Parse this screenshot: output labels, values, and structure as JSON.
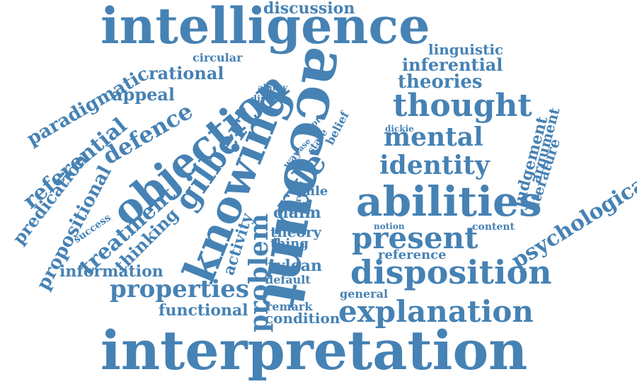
{
  "color": "#4682b4",
  "words": [
    {
      "text": "intelligence",
      "slug": "intelligence"
    },
    {
      "text": "interpretation",
      "slug": "interpretation"
    },
    {
      "text": "account",
      "slug": "account"
    },
    {
      "text": "knowing",
      "slug": "knowing"
    },
    {
      "text": "abilities",
      "slug": "abilities"
    },
    {
      "text": "objection",
      "slug": "objection"
    },
    {
      "text": "disposition",
      "slug": "disposition"
    },
    {
      "text": "thought",
      "slug": "thought"
    },
    {
      "text": "explanation",
      "slug": "explanation"
    },
    {
      "text": "gilbert",
      "slug": "gilbert"
    },
    {
      "text": "ryle",
      "slug": "ryle"
    },
    {
      "text": "present",
      "slug": "present"
    },
    {
      "text": "mental",
      "slug": "mental"
    },
    {
      "text": "identity",
      "slug": "identity"
    },
    {
      "text": "problem",
      "slug": "problem"
    },
    {
      "text": "properties",
      "slug": "properties"
    },
    {
      "text": "defence",
      "slug": "defence"
    },
    {
      "text": "treatment",
      "slug": "treatment"
    },
    {
      "text": "referential",
      "slug": "referential"
    },
    {
      "text": "psychological",
      "slug": "psychological"
    },
    {
      "text": "paradigmatic",
      "slug": "paradigmatic"
    },
    {
      "text": "propositional",
      "slug": "propositional"
    },
    {
      "text": "predication",
      "slug": "predication"
    },
    {
      "text": "theories",
      "slug": "theories"
    },
    {
      "text": "inferential",
      "slug": "inferential"
    },
    {
      "text": "linguistic",
      "slug": "linguistic"
    },
    {
      "text": "rational",
      "slug": "rational"
    },
    {
      "text": "appeal",
      "slug": "appeal"
    },
    {
      "text": "discussion",
      "slug": "discussion"
    },
    {
      "text": "information",
      "slug": "information"
    },
    {
      "text": "functional",
      "slug": "functional"
    },
    {
      "text": "thinking",
      "slug": "thinking"
    },
    {
      "text": "judgement",
      "slug": "judgement"
    },
    {
      "text": "argument",
      "slug": "argument"
    },
    {
      "text": "literature",
      "slug": "literature"
    },
    {
      "text": "activity",
      "slug": "activity"
    },
    {
      "text": "rylean",
      "slug": "rylean"
    },
    {
      "text": "condition",
      "slug": "condition"
    },
    {
      "text": "theory",
      "slug": "theory"
    },
    {
      "text": "thing",
      "slug": "thing"
    },
    {
      "text": "claim",
      "slug": "claim"
    },
    {
      "text": "reference",
      "slug": "reference"
    },
    {
      "text": "general",
      "slug": "general"
    },
    {
      "text": "remark",
      "slug": "remark"
    },
    {
      "text": "default",
      "slug": "default"
    },
    {
      "text": "file",
      "slug": "file"
    },
    {
      "text": "circular",
      "slug": "circular"
    },
    {
      "text": "success",
      "slug": "success"
    },
    {
      "text": "content",
      "slug": "content"
    },
    {
      "text": "notion",
      "slug": "notion"
    },
    {
      "text": "ability",
      "slug": "ability"
    },
    {
      "text": "direct",
      "slug": "direct"
    },
    {
      "text": "belief",
      "slug": "belief"
    },
    {
      "text": "state",
      "slug": "state"
    },
    {
      "text": "more",
      "slug": "more"
    },
    {
      "text": "case",
      "slug": "case"
    },
    {
      "text": "way",
      "slug": "way"
    },
    {
      "text": "frege",
      "slug": "frege"
    },
    {
      "text": "dickie",
      "slug": "dickie"
    }
  ]
}
